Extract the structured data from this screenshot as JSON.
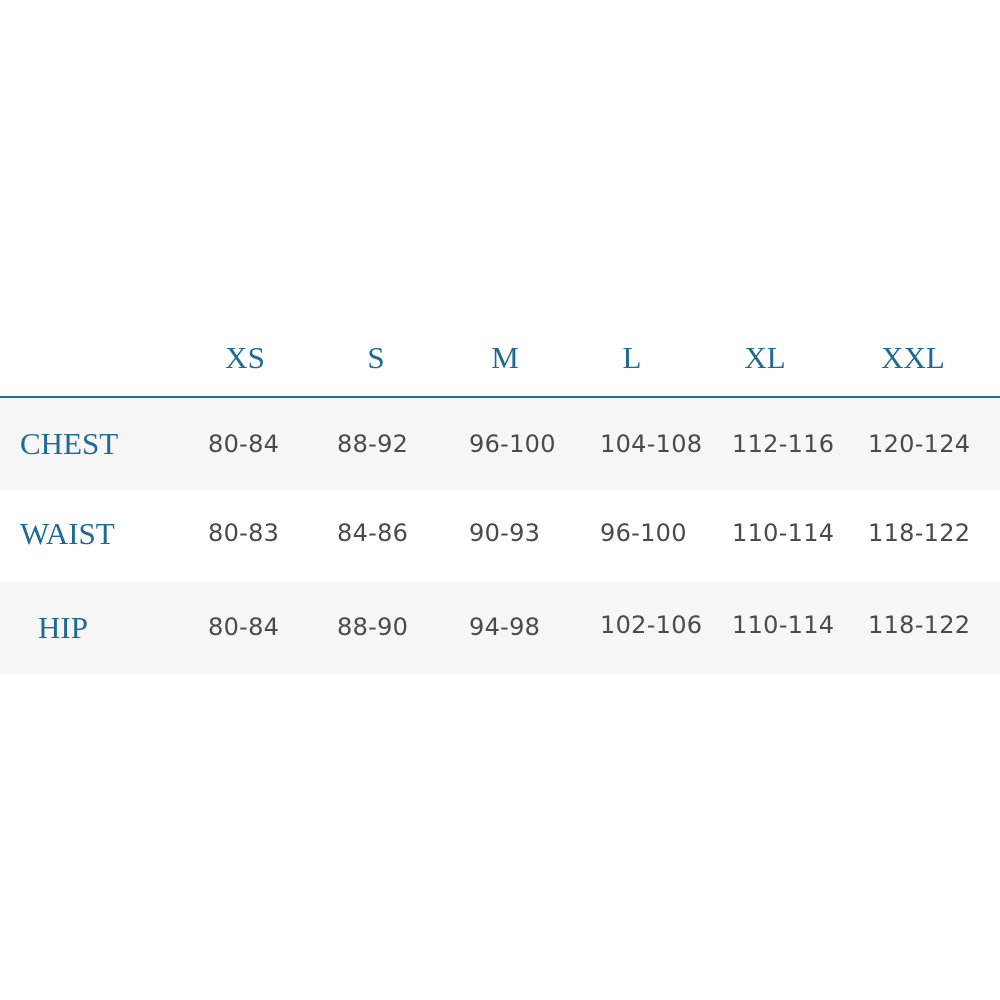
{
  "sizes": [
    "XS",
    "S",
    "M",
    "L",
    "XL",
    "XXL"
  ],
  "rows": [
    {
      "label": "CHEST",
      "values": [
        "80-84",
        "88-92",
        "96-100",
        "104-108",
        "112-116",
        "120-124"
      ]
    },
    {
      "label": "WAIST",
      "values": [
        "80-83",
        "84-86",
        "90-93",
        "96-100",
        "110-114",
        "118-122"
      ]
    },
    {
      "label": "HIP",
      "values": [
        "80-84",
        "88-90",
        "94-98",
        "102-106",
        "110-114",
        "118-122"
      ]
    }
  ],
  "colors": {
    "accent": "#1f6a94",
    "row_alt": "#f6f6f6",
    "text": "#4a4a4a"
  }
}
